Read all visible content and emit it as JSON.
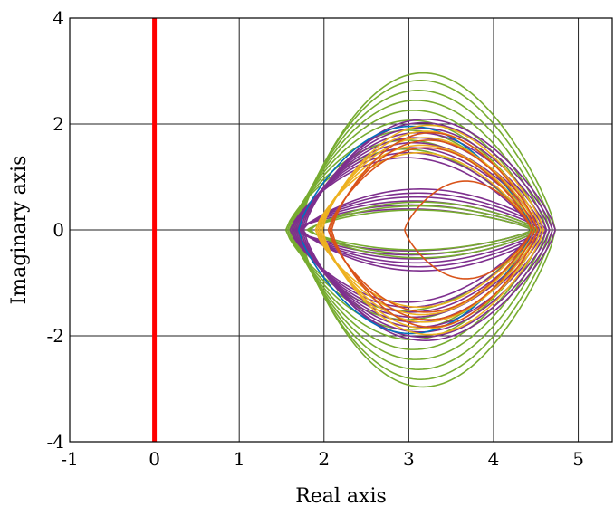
{
  "chart_data": {
    "type": "line",
    "title": "",
    "xlabel": "Real axis",
    "ylabel": "Imaginary axis",
    "xlim": [
      -1,
      5.4
    ],
    "ylim": [
      -4,
      4
    ],
    "xticks": [
      -1,
      0,
      1,
      2,
      3,
      4,
      5
    ],
    "yticks": [
      -4,
      -2,
      0,
      2,
      4
    ],
    "xtick_labels": [
      "-1",
      "0",
      "1",
      "2",
      "3",
      "4",
      "5"
    ],
    "ytick_labels": [
      "-4",
      "-2",
      "0",
      "2",
      "4"
    ],
    "grid": true,
    "colors": {
      "stability_line": "#ff0000",
      "purple": "#7e2f8e",
      "green": "#77ac30",
      "orange": "#edb120",
      "red_orange": "#d95319",
      "blue": "#0072bd"
    },
    "reference_line": {
      "x": 0,
      "y_from": -4,
      "y_to": 4,
      "color": "#ff0000"
    },
    "series": [
      {
        "color": "#77ac30",
        "right": 4.45,
        "left": 1.55,
        "peaks": [
          1.62,
          1.8,
          2.0,
          2.2,
          2.4,
          2.6,
          2.8,
          3.0,
          3.15
        ]
      },
      {
        "color": "#7e2f8e",
        "right": 4.45,
        "left": 1.6,
        "peaks": [
          1.45,
          1.55,
          1.65,
          1.75,
          1.85,
          1.95,
          2.05,
          2.15,
          2.22
        ]
      },
      {
        "color": "#7e2f8e",
        "right": 4.45,
        "left": 1.65,
        "peaks": [
          0.42,
          0.5,
          0.58,
          0.66,
          0.74,
          0.82
        ]
      },
      {
        "color": "#77ac30",
        "right": 4.45,
        "left": 1.8,
        "peaks": [
          0.4,
          0.48,
          0.56
        ]
      },
      {
        "color": "#0072bd",
        "right": 4.45,
        "left": 1.7,
        "peaks": [
          2.08
        ]
      },
      {
        "color": "#edb120",
        "right": 4.45,
        "left": 1.9,
        "peaks": [
          1.55,
          1.7,
          1.85,
          1.98,
          2.1
        ]
      },
      {
        "color": "#d95319",
        "right": 4.45,
        "left": 2.05,
        "peaks": [
          1.65,
          1.8,
          1.95
        ]
      },
      {
        "color": "#d95319",
        "right": 4.45,
        "left": 2.95,
        "peaks": [
          0.98
        ]
      }
    ]
  }
}
